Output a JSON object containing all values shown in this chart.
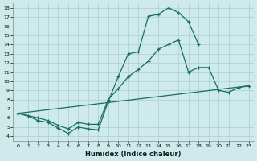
{
  "xlabel": "Humidex (Indice chaleur)",
  "background_color": "#ceeaea",
  "grid_color": "#aacece",
  "line_color": "#1a6e5e",
  "xlim": [
    -0.5,
    23.5
  ],
  "ylim": [
    3.5,
    18.5
  ],
  "xticks": [
    0,
    1,
    2,
    3,
    4,
    5,
    6,
    7,
    8,
    9,
    10,
    11,
    12,
    13,
    14,
    15,
    16,
    17,
    18,
    19,
    20,
    21,
    22,
    23
  ],
  "yticks": [
    4,
    5,
    6,
    7,
    8,
    9,
    10,
    11,
    12,
    13,
    14,
    15,
    16,
    17,
    18
  ],
  "curve1_x": [
    0,
    1,
    2,
    3,
    4,
    5,
    6,
    7,
    8,
    9,
    10,
    11,
    12,
    13,
    14,
    15,
    16,
    17,
    18
  ],
  "curve1_y": [
    6.5,
    6.2,
    5.7,
    5.5,
    4.9,
    4.3,
    5.0,
    4.8,
    4.7,
    7.8,
    10.5,
    13.0,
    13.2,
    17.1,
    17.3,
    18.0,
    17.5,
    16.5,
    14.0
  ],
  "curve2_x": [
    0,
    2,
    3,
    4,
    5,
    6,
    7,
    8,
    9,
    10,
    11,
    12,
    13,
    14,
    15,
    16,
    17,
    18,
    19,
    20,
    21,
    22,
    23
  ],
  "curve2_y": [
    6.5,
    6.0,
    5.7,
    5.2,
    4.8,
    5.5,
    5.3,
    5.3,
    8.0,
    9.2,
    10.5,
    11.3,
    12.2,
    13.5,
    14.0,
    14.5,
    11.0,
    11.5,
    11.5,
    9.0,
    8.8,
    9.3,
    9.5
  ],
  "curve3_x": [
    0,
    23
  ],
  "curve3_y": [
    6.5,
    9.5
  ]
}
